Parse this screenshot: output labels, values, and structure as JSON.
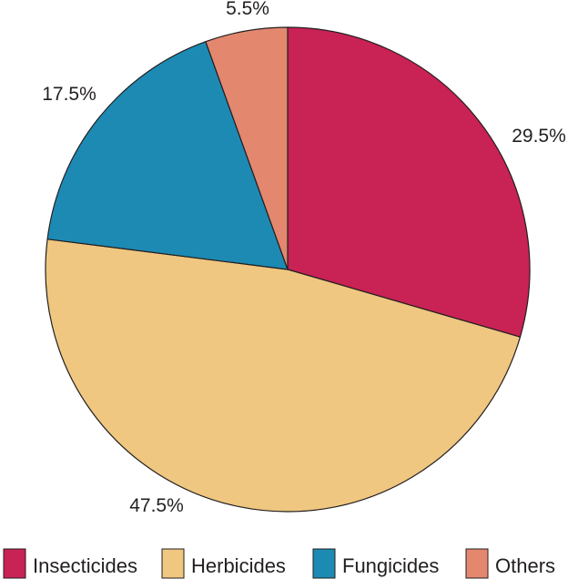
{
  "chart_data": {
    "type": "pie",
    "title": "",
    "start_angle_deg": 0,
    "direction": "clockwise",
    "slices": [
      {
        "name": "Insecticides",
        "value": 29.5,
        "label": "29.5%",
        "color": "#c92255"
      },
      {
        "name": "Herbicides",
        "value": 47.5,
        "label": "47.5%",
        "color": "#efc780"
      },
      {
        "name": "Fungicides",
        "value": 17.5,
        "label": "17.5%",
        "color": "#1d8ab4"
      },
      {
        "name": "Others",
        "value": 5.5,
        "label": "5.5%",
        "color": "#e4876f"
      }
    ],
    "legend": {
      "placement": "bottom",
      "entries": [
        "Insecticides",
        "Herbicides",
        "Fungicides",
        "Others"
      ]
    },
    "stroke_color": "#231f20"
  }
}
